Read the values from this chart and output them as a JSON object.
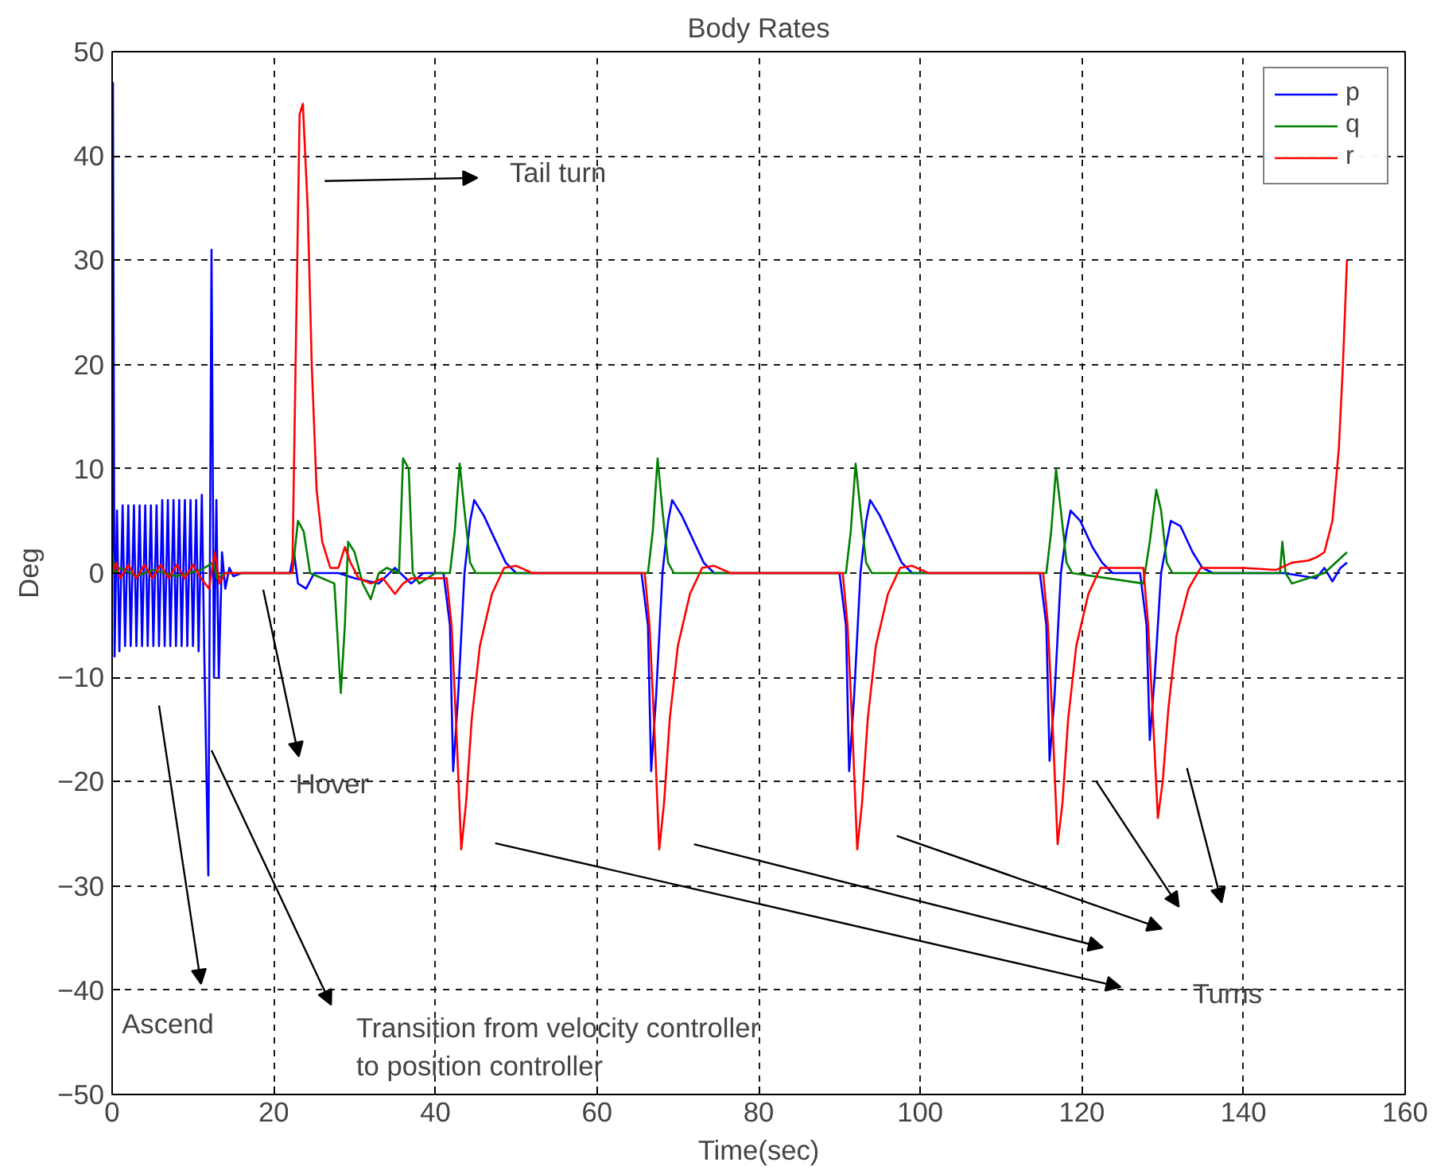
{
  "chart_data": {
    "type": "line",
    "title": "Body Rates",
    "xlabel": "Time(sec)",
    "ylabel": "Deg",
    "xlim": [
      0,
      160
    ],
    "xticks": [
      0,
      20,
      40,
      60,
      80,
      100,
      120,
      140,
      160
    ],
    "ylim": [
      -50,
      50
    ],
    "yticks": [
      -50,
      -40,
      -30,
      -20,
      -10,
      0,
      10,
      20,
      30,
      40,
      50
    ],
    "grid": true,
    "legend": "top right",
    "line_style": "solid",
    "series": [
      {
        "name": "p",
        "color": "#0000ff",
        "x": [
          0,
          0.1,
          0.3,
          0.6,
          0.9,
          1.3,
          1.6,
          2.0,
          2.3,
          2.7,
          3.0,
          3.4,
          3.7,
          4.1,
          4.4,
          4.8,
          5.1,
          5.5,
          5.8,
          6.2,
          6.5,
          6.9,
          7.2,
          7.6,
          7.9,
          8.3,
          8.6,
          9.0,
          9.3,
          9.7,
          10.0,
          10.4,
          10.7,
          11.1,
          11.4,
          11.9,
          12.3,
          12.6,
          12.9,
          13.2,
          13.6,
          14.0,
          14.5,
          15,
          16,
          22,
          22.5,
          23,
          24,
          25,
          28,
          30,
          33,
          35,
          37,
          38.5,
          41,
          41.8,
          42.2,
          42.8,
          43.6,
          44.3,
          44.8,
          46,
          47.5,
          48.7,
          50,
          65.5,
          66.3,
          66.7,
          67.3,
          68.1,
          68.8,
          69.3,
          70.5,
          72,
          73.2,
          74.5,
          90,
          90.8,
          91.2,
          91.8,
          92.6,
          93.3,
          93.8,
          95,
          96.5,
          97.7,
          99,
          114.8,
          115.6,
          116,
          116.6,
          117.4,
          118.1,
          118.6,
          119.8,
          121.3,
          122.5,
          123.8,
          127.2,
          128,
          128.4,
          129,
          129.8,
          130.5,
          131,
          132.2,
          133.7,
          134.9,
          136.2,
          145,
          149,
          150,
          151,
          152,
          152.8
        ],
        "values": [
          0,
          47,
          -8,
          6,
          -7.5,
          6.5,
          -7,
          6.5,
          -7,
          6.5,
          -7,
          6.5,
          -7,
          6.5,
          -7,
          6.5,
          -7,
          6.5,
          -7,
          7,
          -7,
          7,
          -7,
          7,
          -7,
          7,
          -7,
          7,
          -7,
          7,
          -7,
          7,
          -7.5,
          7.5,
          -7.5,
          -29,
          31,
          -10,
          7,
          -10,
          2,
          -1.5,
          0.5,
          -0.3,
          0,
          0,
          2,
          -1,
          -1.5,
          0,
          0,
          -0.5,
          -1,
          0.5,
          -1,
          0,
          0,
          -5,
          -19,
          -12,
          0,
          5,
          7,
          5.5,
          3,
          1,
          0,
          0,
          -5,
          -19,
          -12,
          0,
          5,
          7,
          5.5,
          3,
          1,
          0,
          0,
          -5,
          -19,
          -12,
          0,
          5,
          7,
          5.5,
          3,
          1,
          0,
          0,
          -5,
          -18,
          -12,
          0,
          4,
          6,
          5,
          2.5,
          1,
          0,
          0,
          -5,
          -16,
          -10,
          0,
          3,
          5,
          4.5,
          2,
          0.5,
          0,
          0,
          -0.5,
          0.5,
          -0.8,
          0.5,
          1
        ]
      },
      {
        "name": "q",
        "color": "#008000",
        "x": [
          0,
          0.3,
          1,
          3,
          5,
          8,
          11,
          12.5,
          13,
          14,
          22.3,
          23,
          23.7,
          24.5,
          27.5,
          28.3,
          28.8,
          29.2,
          30,
          31,
          32,
          33,
          34,
          35.5,
          36,
          36.7,
          37.2,
          38,
          40,
          41.8,
          42.4,
          43,
          43.6,
          44.3,
          45,
          66.3,
          66.9,
          67.5,
          68.1,
          68.8,
          69.5,
          90.8,
          91.4,
          92,
          92.6,
          93.3,
          94,
          115.6,
          116.2,
          116.8,
          117.4,
          118.1,
          118.8,
          127.6,
          128.4,
          129.2,
          129.8,
          130.5,
          131.2,
          136,
          144.5,
          144.8,
          145.2,
          146,
          148,
          150,
          152.8
        ],
        "values": [
          2,
          0,
          0.5,
          -0.3,
          0.3,
          -0.3,
          0.3,
          1,
          -0.5,
          0,
          0,
          5,
          4,
          0,
          -1,
          -11.5,
          -5,
          3,
          2,
          -1,
          -2.5,
          0,
          0.5,
          0,
          11,
          10,
          0,
          -1,
          0,
          0,
          4,
          10.5,
          6,
          1,
          0,
          0,
          4,
          11,
          6,
          1,
          0,
          0,
          4,
          10.5,
          6,
          1,
          0,
          0,
          4,
          10,
          6,
          1,
          0,
          -1,
          3,
          8,
          6,
          1,
          0,
          0,
          0,
          3,
          0,
          -1,
          -0.5,
          0,
          2
        ]
      },
      {
        "name": "r",
        "color": "#ff0000",
        "x": [
          0,
          0.5,
          1,
          2,
          3,
          4,
          5,
          6,
          7,
          8,
          9,
          10,
          11,
          12,
          12.7,
          13.3,
          14,
          22.3,
          22.7,
          23.2,
          23.6,
          24.2,
          24.7,
          25.3,
          26,
          27,
          28,
          28.8,
          29.5,
          30.5,
          32,
          33.5,
          35,
          36,
          37,
          41.4,
          42,
          42.6,
          43.2,
          43.8,
          44.5,
          45.5,
          47,
          48.5,
          50,
          52,
          65.9,
          66.5,
          67.1,
          67.7,
          68.3,
          69,
          70,
          71.5,
          73,
          74.5,
          76.5,
          90.4,
          91,
          91.6,
          92.2,
          92.8,
          93.5,
          94.5,
          96,
          97.5,
          99,
          101,
          115.2,
          115.8,
          116.4,
          117,
          117.6,
          118.3,
          119.3,
          120.8,
          122.3,
          123.8,
          125,
          127.6,
          128.2,
          128.8,
          129.4,
          130,
          130.7,
          131.7,
          133.2,
          134.7,
          136,
          140,
          144,
          146,
          148,
          149,
          150,
          151,
          151.8,
          152.3,
          152.8
        ],
        "values": [
          0,
          1,
          -0.5,
          0.8,
          -0.5,
          0.8,
          -0.5,
          0.8,
          -0.5,
          0.8,
          -0.5,
          0.8,
          -0.5,
          -1.5,
          2,
          -1,
          0,
          0,
          20,
          44,
          45,
          35,
          20,
          8,
          3,
          0.5,
          0.5,
          2.5,
          1,
          -0.5,
          -1,
          -0.5,
          -2,
          -1,
          -0.5,
          -0.5,
          -5,
          -15,
          -26.5,
          -22,
          -14,
          -7,
          -2,
          0.5,
          0.7,
          0,
          0,
          -5,
          -15,
          -26.5,
          -22,
          -14,
          -7,
          -2,
          0.5,
          0.7,
          0,
          0,
          -5,
          -15,
          -26.5,
          -22,
          -14,
          -7,
          -2,
          0.5,
          0.7,
          0,
          0,
          -5,
          -15,
          -26,
          -22,
          -14,
          -7,
          -2,
          0.5,
          0.5,
          0.5,
          0.5,
          -5,
          -14,
          -23.5,
          -20,
          -13,
          -6,
          -1.5,
          0.5,
          0.5,
          0.5,
          0.3,
          1,
          1.2,
          1.5,
          2,
          5,
          12,
          20,
          30
        ]
      }
    ],
    "annotations": [
      "Tail turn",
      "Hover",
      "Ascend",
      "Transition from velocity controller\nto position controller",
      "Turns"
    ]
  }
}
